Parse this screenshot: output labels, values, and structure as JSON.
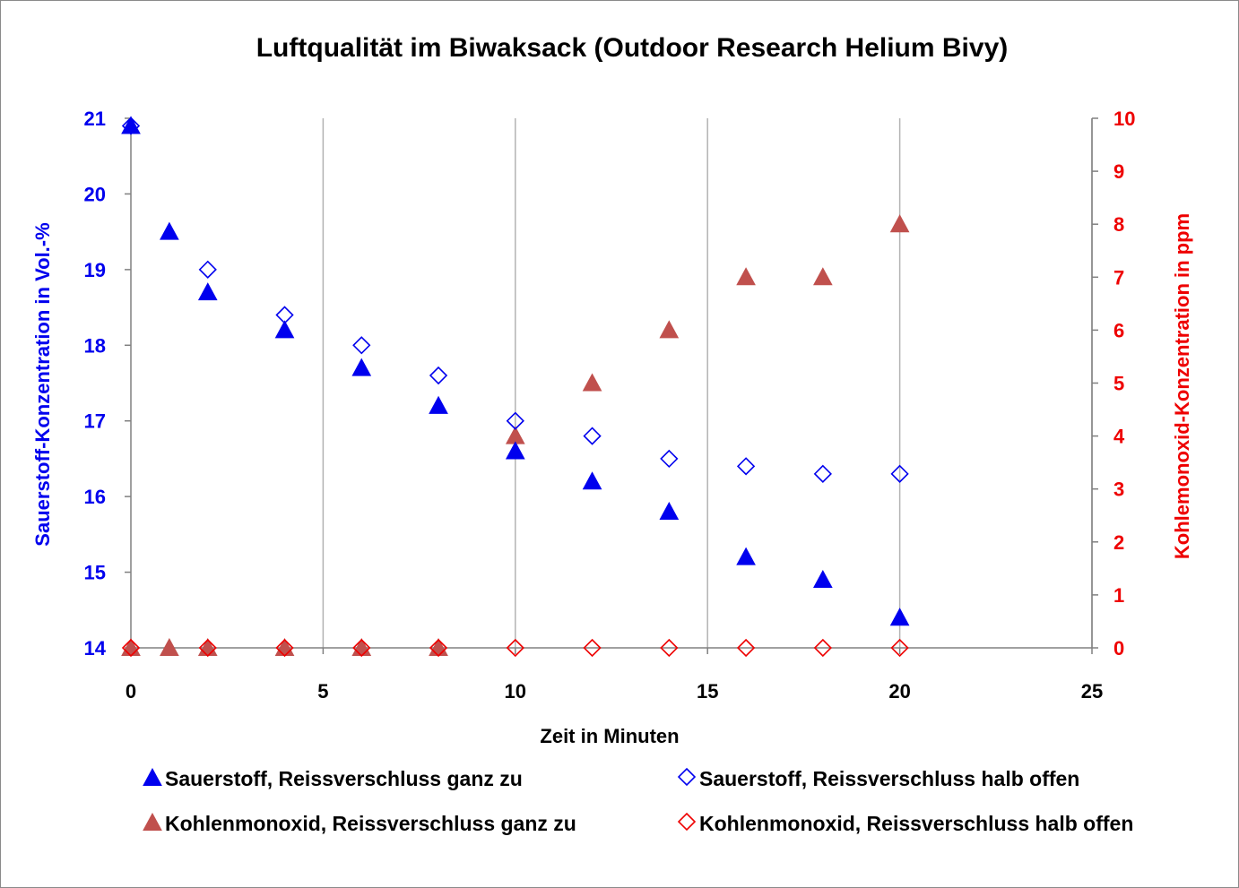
{
  "chart_data": {
    "type": "scatter",
    "title": "Luftqualität im  Biwaksack (Outdoor Research Helium Bivy)",
    "xlabel": "Zeit in Minuten",
    "ylabel_left": "Sauerstoff-Konzentration in Vol.-%",
    "ylabel_right": "Kohlemonoxid-Konzentration in ppm",
    "xlim": [
      0,
      25
    ],
    "ylim_left": [
      14,
      21
    ],
    "ylim_right": [
      0,
      10
    ],
    "x_ticks": [
      0,
      5,
      10,
      15,
      20,
      25
    ],
    "y_ticks_left": [
      14,
      15,
      16,
      17,
      18,
      19,
      20,
      21
    ],
    "y_ticks_right": [
      0,
      1,
      2,
      3,
      4,
      5,
      6,
      7,
      8,
      9,
      10
    ],
    "grid": "vertical",
    "legend_position": "bottom",
    "colors": {
      "left_axis": "#0000ee",
      "right_axis": "#ee0000",
      "co_filled": "#c0504d",
      "grid": "#b3b3b3"
    },
    "series": [
      {
        "name": "Sauerstoff, Reissverschluss ganz zu",
        "marker": "triangle-filled",
        "color": "#0000ee",
        "axis": "left",
        "x": [
          0,
          1,
          2,
          4,
          6,
          8,
          10,
          12,
          14,
          16,
          18,
          20
        ],
        "y": [
          20.9,
          19.5,
          18.7,
          18.2,
          17.7,
          17.2,
          16.6,
          16.2,
          15.8,
          15.2,
          14.9,
          14.4
        ]
      },
      {
        "name": "Sauerstoff, Reissverschluss halb offen",
        "marker": "diamond-open",
        "color": "#0000ee",
        "axis": "left",
        "x": [
          0,
          2,
          4,
          6,
          8,
          10,
          12,
          14,
          16,
          18,
          20
        ],
        "y": [
          20.9,
          19.0,
          18.4,
          18.0,
          17.6,
          17.0,
          16.8,
          16.5,
          16.4,
          16.3,
          16.3
        ]
      },
      {
        "name": "Kohlenmonoxid, Reissverschluss ganz zu",
        "marker": "triangle-filled",
        "color": "#c0504d",
        "axis": "right",
        "x": [
          0,
          1,
          2,
          4,
          6,
          8,
          10,
          12,
          14,
          16,
          18,
          20
        ],
        "y": [
          0,
          0,
          0,
          0,
          0,
          0,
          4,
          5,
          6,
          7,
          7,
          8
        ]
      },
      {
        "name": "Kohlenmonoxid, Reissverschluss halb offen",
        "marker": "diamond-open",
        "color": "#ee0000",
        "axis": "right",
        "x": [
          0,
          2,
          4,
          6,
          8,
          10,
          12,
          14,
          16,
          18,
          20
        ],
        "y": [
          0,
          0,
          0,
          0,
          0,
          0,
          0,
          0,
          0,
          0,
          0
        ]
      }
    ]
  }
}
